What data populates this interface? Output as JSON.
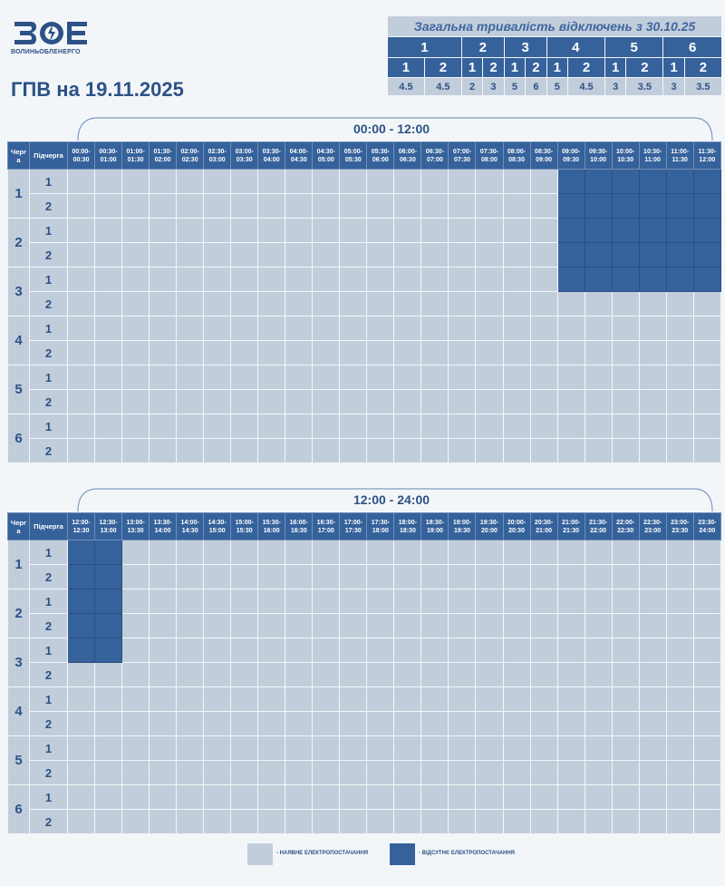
{
  "brand": {
    "logo_text": "ЗОЕ",
    "name": "ВОЛИНЬОБЛЕНЕРГО"
  },
  "title": "ГПВ на 19.11.2025",
  "summary": {
    "title": "Загальна тривалість відключень з 30.10.25",
    "groups": [
      {
        "label": "1",
        "subs": [
          {
            "label": "1",
            "value": "4.5"
          },
          {
            "label": "2",
            "value": "4.5"
          }
        ]
      },
      {
        "label": "2",
        "subs": [
          {
            "label": "1",
            "value": "2"
          },
          {
            "label": "2",
            "value": "3"
          }
        ]
      },
      {
        "label": "3",
        "subs": [
          {
            "label": "1",
            "value": "5"
          },
          {
            "label": "2",
            "value": "6"
          }
        ]
      },
      {
        "label": "4",
        "subs": [
          {
            "label": "1",
            "value": "5"
          },
          {
            "label": "2",
            "value": "4.5"
          }
        ]
      },
      {
        "label": "5",
        "subs": [
          {
            "label": "1",
            "value": "3"
          },
          {
            "label": "2",
            "value": "3.5"
          }
        ]
      },
      {
        "label": "6",
        "subs": [
          {
            "label": "1",
            "value": "3"
          },
          {
            "label": "2",
            "value": "3.5"
          }
        ]
      }
    ]
  },
  "headers": {
    "queue": "Черг а",
    "subqueue": "Підчерга"
  },
  "queues": [
    "1",
    "2",
    "3",
    "4",
    "5",
    "6"
  ],
  "subqueues": [
    "1",
    "2"
  ],
  "sections": [
    {
      "range": "00:00 - 12:00",
      "slots": [
        "00:00-00:30",
        "00:30-01:00",
        "01:00-01:30",
        "01:30-02:00",
        "02:00-02:30",
        "02:30-03:00",
        "03:00-03:30",
        "03:30-04:00",
        "04:00-04:30",
        "04:30-05:00",
        "05:00-05:30",
        "05:30-06:00",
        "06:00-06:30",
        "06:30-07:00",
        "07:00-07:30",
        "07:30-08:00",
        "08:00-08:30",
        "08:30-09:00",
        "09:00-09:30",
        "09:30-10:00",
        "10:00-10:30",
        "10:30-11:00",
        "11:00-11:30",
        "11:30-12:00"
      ],
      "outages": [
        [
          [
            18,
            19,
            20,
            21,
            22,
            23
          ],
          [
            18,
            19,
            20,
            21,
            22,
            23
          ]
        ],
        [
          [
            18,
            19,
            20,
            21,
            22,
            23
          ],
          [
            18,
            19,
            20,
            21,
            22,
            23
          ]
        ],
        [
          [
            18,
            19,
            20,
            21,
            22,
            23
          ],
          []
        ],
        [
          [],
          []
        ],
        [
          [],
          []
        ],
        [
          [],
          []
        ]
      ]
    },
    {
      "range": "12:00 - 24:00",
      "slots": [
        "12:00-12:30",
        "12:30-13:00",
        "13:00-13:30",
        "13:30-14:00",
        "14:00-14:30",
        "14:30-15:00",
        "15:00-15:30",
        "15:30-16:00",
        "16:00-16:30",
        "16:30-17:00",
        "17:00-17:30",
        "17:30-18:00",
        "18:00-18:30",
        "18:30-19:00",
        "19:00-19:30",
        "19:30-20:00",
        "20:00-20:30",
        "20:30-21:00",
        "21:00-21:30",
        "21:30-22:00",
        "22:00-22:30",
        "22:30-23:00",
        "23:00-23:30",
        "23:30-24:00"
      ],
      "outages": [
        [
          [
            0,
            1
          ],
          [
            0,
            1
          ]
        ],
        [
          [
            0,
            1
          ],
          [
            0,
            1
          ]
        ],
        [
          [
            0,
            1
          ],
          []
        ],
        [
          [],
          []
        ],
        [
          [],
          []
        ],
        [
          [],
          []
        ]
      ]
    }
  ],
  "legend": {
    "on_label": "- НАЯВНЕ ЕЛЕКТРОПОСТАЧАННЯ",
    "off_label": "- ВІДСУТНЄ ЕЛЕКТРОПОСТАЧАННЯ"
  },
  "colors": {
    "on": "#c2cddb",
    "off": "#36629b",
    "text": "#2c5286",
    "background": "#f3f6f9"
  }
}
